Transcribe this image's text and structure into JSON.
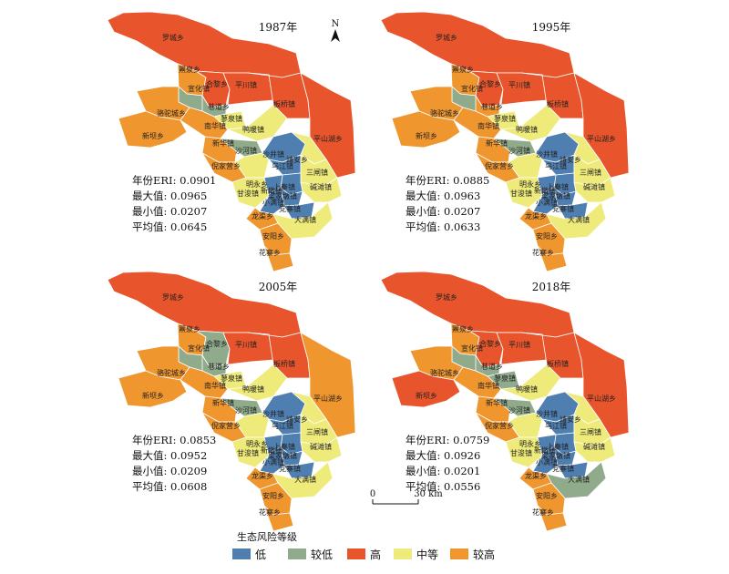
{
  "colors": {
    "低": "#4f7fb0",
    "较低": "#90ab8b",
    "高": "#e8552c",
    "中等": "#eeeb7a",
    "较高": "#f0962f"
  },
  "regions": [
    {
      "key": "luocheng",
      "name": "罗城乡"
    },
    {
      "key": "piquan",
      "name": "罴泉乡"
    },
    {
      "key": "xuanhua",
      "name": "宣化镇"
    },
    {
      "key": "helian",
      "name": "合黎乡"
    },
    {
      "key": "pingchuan",
      "name": "平川镇"
    },
    {
      "key": "banqiao",
      "name": "板桥镇"
    },
    {
      "key": "pingshanhu",
      "name": "平山湖乡"
    },
    {
      "key": "luotuocheng",
      "name": "骆驼城乡"
    },
    {
      "key": "xinba",
      "name": "新坝乡"
    },
    {
      "key": "xiangdao",
      "name": "巷道乡"
    },
    {
      "key": "liaoquan",
      "name": "蓼泉镇"
    },
    {
      "key": "nanhua",
      "name": "南华镇"
    },
    {
      "key": "yanuan",
      "name": "鸭暖镇"
    },
    {
      "key": "xinhua",
      "name": "新华镇"
    },
    {
      "key": "shahe",
      "name": "沙河镇"
    },
    {
      "key": "shajing",
      "name": "沙井镇"
    },
    {
      "key": "jingan",
      "name": "靖安乡"
    },
    {
      "key": "nijiaying",
      "name": "倪家营乡"
    },
    {
      "key": "wujiang",
      "name": "乌江镇"
    },
    {
      "key": "sanzha",
      "name": "三闸镇"
    },
    {
      "key": "mingyong",
      "name": "明永乡"
    },
    {
      "key": "ganjun",
      "name": "甘浚镇"
    },
    {
      "key": "shangqin",
      "name": "上秦镇"
    },
    {
      "key": "xindun",
      "name": "新墩镇"
    },
    {
      "key": "liangjiadun",
      "name": "梁家墩镇"
    },
    {
      "key": "jiantan",
      "name": "碱滩镇"
    },
    {
      "key": "xiaoman",
      "name": "小满镇"
    },
    {
      "key": "dangzhai",
      "name": "党寨镇"
    },
    {
      "key": "longqu",
      "name": "龙渠乡"
    },
    {
      "key": "daman",
      "name": "大满镇"
    },
    {
      "key": "anyang",
      "name": "安阳乡"
    },
    {
      "key": "huazhai",
      "name": "花寨乡"
    }
  ],
  "panels": [
    {
      "year": "1987年",
      "stats": [
        "年份ERI: 0.0901",
        "最大值: 0.0965",
        "最小值: 0.0207",
        "平均值: 0.0645"
      ],
      "levels": {
        "luocheng": "高",
        "piquan": "较高",
        "xuanhua": "较低",
        "helian": "高",
        "pingchuan": "高",
        "banqiao": "高",
        "pingshanhu": "高",
        "luotuocheng": "较高",
        "xinba": "较高",
        "xiangdao": "较低",
        "liaoquan": "中等",
        "nanhua": "较高",
        "yanuan": "中等",
        "xinhua": "较高",
        "shahe": "较低",
        "shajing": "低",
        "jingan": "中等",
        "nijiaying": "较高",
        "wujiang": "低",
        "sanzha": "中等",
        "mingyong": "中等",
        "ganjun": "中等",
        "shangqin": "低",
        "xindun": "低",
        "liangjiadun": "低",
        "jiantan": "中等",
        "xiaoman": "低",
        "dangzhai": "低",
        "longqu": "较高",
        "daman": "中等",
        "anyang": "较高",
        "huazhai": "较高"
      }
    },
    {
      "year": "1995年",
      "stats": [
        "年份ERI: 0.0885",
        "最大值: 0.0963",
        "最小值: 0.0207",
        "平均值: 0.0633"
      ],
      "levels": {
        "luocheng": "高",
        "piquan": "较高",
        "xuanhua": "较低",
        "helian": "高",
        "pingchuan": "高",
        "banqiao": "高",
        "pingshanhu": "高",
        "luotuocheng": "较高",
        "xinba": "较高",
        "xiangdao": "较高",
        "liaoquan": "中等",
        "nanhua": "较高",
        "yanuan": "中等",
        "xinhua": "较高",
        "shahe": "较低",
        "shajing": "低",
        "jingan": "中等",
        "nijiaying": "较高",
        "wujiang": "低",
        "sanzha": "中等",
        "mingyong": "中等",
        "ganjun": "中等",
        "shangqin": "低",
        "xindun": "低",
        "liangjiadun": "低",
        "jiantan": "中等",
        "xiaoman": "低",
        "dangzhai": "低",
        "longqu": "较高",
        "daman": "中等",
        "anyang": "较高",
        "huazhai": "较高"
      }
    },
    {
      "year": "2005年",
      "stats": [
        "年份ERI: 0.0853",
        "最大值: 0.0952",
        "最小值: 0.0209",
        "平均值: 0.0608"
      ],
      "levels": {
        "luocheng": "高",
        "piquan": "较高",
        "xuanhua": "较低",
        "helian": "较低",
        "pingchuan": "高",
        "banqiao": "高",
        "pingshanhu": "较高",
        "luotuocheng": "较高",
        "xinba": "较高",
        "xiangdao": "较低",
        "liaoquan": "中等",
        "nanhua": "较高",
        "yanuan": "中等",
        "xinhua": "较高",
        "shahe": "较低",
        "shajing": "低",
        "jingan": "中等",
        "nijiaying": "较高",
        "wujiang": "低",
        "sanzha": "中等",
        "mingyong": "中等",
        "ganjun": "中等",
        "shangqin": "低",
        "xindun": "低",
        "liangjiadun": "低",
        "jiantan": "中等",
        "xiaoman": "低",
        "dangzhai": "低",
        "longqu": "较高",
        "daman": "中等",
        "anyang": "较高",
        "huazhai": "较高"
      }
    },
    {
      "year": "2018年",
      "stats": [
        "年份ERI: 0.0759",
        "最大值: 0.0926",
        "最小值: 0.0201",
        "平均值: 0.0556"
      ],
      "levels": {
        "luocheng": "高",
        "piquan": "较高",
        "xuanhua": "较低",
        "helian": "高",
        "pingchuan": "高",
        "banqiao": "高",
        "pingshanhu": "高",
        "luotuocheng": "较高",
        "xinba": "高",
        "xiangdao": "较低",
        "liaoquan": "较低",
        "nanhua": "较高",
        "yanuan": "中等",
        "xinhua": "较高",
        "shahe": "较低",
        "shajing": "低",
        "jingan": "中等",
        "nijiaying": "较高",
        "wujiang": "低",
        "sanzha": "中等",
        "mingyong": "中等",
        "ganjun": "中等",
        "shangqin": "低",
        "xindun": "低",
        "liangjiadun": "低",
        "jiantan": "中等",
        "xiaoman": "低",
        "dangzhai": "低",
        "longqu": "较高",
        "daman": "较低",
        "anyang": "较高",
        "huazhai": "较高"
      }
    }
  ],
  "north_arrow_label": "N",
  "scale_bar": {
    "start_label": "0",
    "end_label": "30 km"
  },
  "legend": {
    "title": "生态风险等级",
    "items": [
      "低",
      "较低",
      "高",
      "中等",
      "较高"
    ]
  }
}
